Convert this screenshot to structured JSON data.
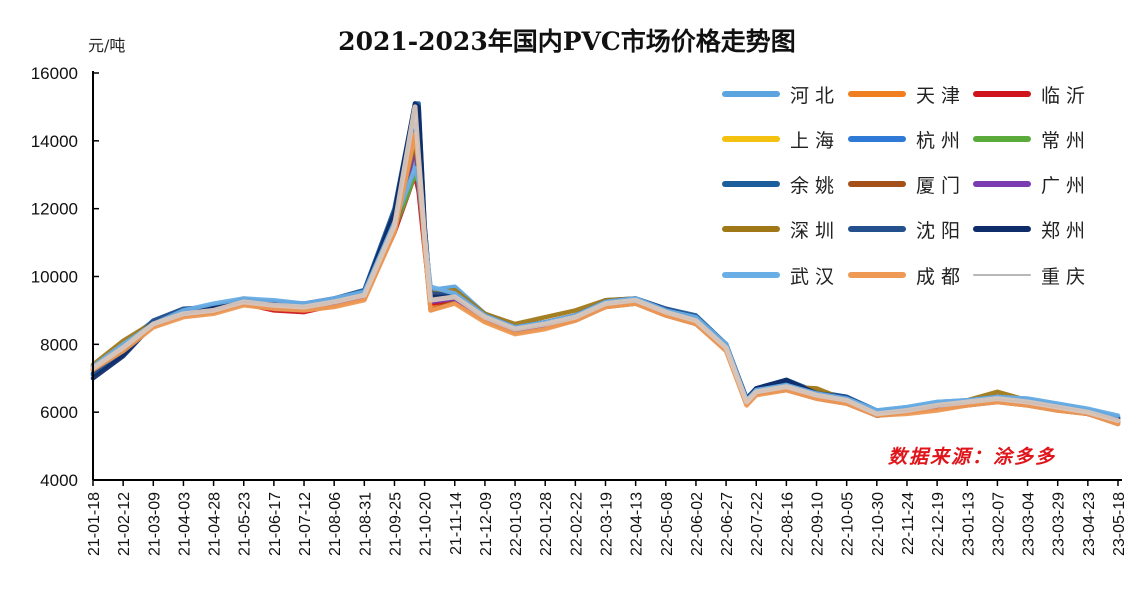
{
  "chart_data": {
    "type": "line",
    "title": "2021-2023年国内PVC市场价格走势图",
    "ylabel": "元/吨",
    "xlabel": "",
    "ylim": [
      4000,
      16000
    ],
    "yticks": [
      4000,
      6000,
      8000,
      10000,
      12000,
      14000,
      16000
    ],
    "xtick_labels": [
      "21-01-18",
      "21-02-12",
      "21-03-09",
      "21-04-03",
      "21-04-28",
      "21-05-23",
      "21-06-17",
      "21-07-12",
      "21-08-06",
      "21-08-31",
      "21-09-25",
      "21-10-20",
      "21-11-14",
      "21-12-09",
      "22-01-03",
      "22-01-28",
      "22-02-22",
      "22-03-19",
      "22-04-13",
      "22-05-08",
      "22-06-02",
      "22-06-27",
      "22-07-22",
      "22-08-16",
      "22-09-10",
      "22-10-05",
      "22-10-30",
      "22-11-24",
      "22-12-19",
      "23-01-13",
      "23-02-07",
      "23-03-04",
      "23-03-29",
      "23-04-23",
      "23-05-18"
    ],
    "grid": false,
    "legend_position": "top-right",
    "source_note": "数据来源：涂多多",
    "x": [
      "21-01-18",
      "21-02-12",
      "21-03-09",
      "21-04-03",
      "21-04-28",
      "21-05-23",
      "21-06-17",
      "21-07-12",
      "21-08-06",
      "21-08-31",
      "21-09-25",
      "21-10-12",
      "21-10-15",
      "21-10-20",
      "21-10-25",
      "21-11-14",
      "21-12-09",
      "22-01-03",
      "22-01-28",
      "22-02-22",
      "22-03-19",
      "22-04-13",
      "22-05-08",
      "22-06-02",
      "22-06-27",
      "22-07-14",
      "22-07-22",
      "22-08-16",
      "22-09-10",
      "22-10-05",
      "22-10-30",
      "22-11-24",
      "22-12-19",
      "23-01-13",
      "23-02-07",
      "23-03-04",
      "23-03-29",
      "23-04-23",
      "23-05-18"
    ],
    "series": [
      {
        "name": "河北",
        "color": "#5ba4e0",
        "values": [
          7350,
          8000,
          8700,
          9000,
          9150,
          9300,
          9250,
          9150,
          9300,
          9550,
          11700,
          13500,
          12800,
          11000,
          9600,
          9700,
          8900,
          8500,
          8650,
          8850,
          9250,
          9300,
          9000,
          8800,
          8000,
          6400,
          6650,
          6800,
          6600,
          6450,
          6050,
          6150,
          6300,
          6350,
          6450,
          6400,
          6250,
          6100,
          5850
        ]
      },
      {
        "name": "天津",
        "color": "#f07f22",
        "values": [
          7250,
          7850,
          8550,
          8850,
          8950,
          9200,
          9100,
          9050,
          9200,
          9400,
          11400,
          14000,
          13200,
          11000,
          9100,
          9300,
          8700,
          8350,
          8500,
          8750,
          9100,
          9250,
          8900,
          8650,
          7850,
          6250,
          6550,
          6700,
          6450,
          6300,
          5900,
          6000,
          6150,
          6250,
          6350,
          6250,
          6100,
          5950,
          5700
        ]
      },
      {
        "name": "临沂",
        "color": "#d0141c",
        "values": [
          7300,
          7900,
          8600,
          8900,
          9000,
          9200,
          9000,
          8950,
          9150,
          9400,
          11300,
          13000,
          12500,
          10800,
          9200,
          9300,
          8750,
          8400,
          8550,
          8750,
          9150,
          9250,
          8900,
          8650,
          7900,
          6300,
          6600,
          6700,
          6450,
          6300,
          5950,
          6050,
          6150,
          6250,
          6350,
          6250,
          6100,
          5950,
          5700
        ]
      },
      {
        "name": "上海",
        "color": "#f5c110",
        "values": [
          7300,
          7950,
          8650,
          8950,
          9050,
          9300,
          9150,
          9100,
          9250,
          9450,
          11500,
          14200,
          13200,
          11100,
          9300,
          9400,
          8800,
          8450,
          8600,
          8800,
          9200,
          9300,
          8950,
          8700,
          7900,
          6300,
          6600,
          6750,
          6500,
          6350,
          5950,
          6050,
          6200,
          6300,
          6400,
          6300,
          6150,
          6000,
          5750
        ]
      },
      {
        "name": "杭州",
        "color": "#2f7ad6",
        "values": [
          7350,
          7950,
          8650,
          8950,
          9100,
          9300,
          9200,
          9150,
          9300,
          9500,
          11600,
          14500,
          13400,
          11200,
          9400,
          9450,
          8850,
          8500,
          8650,
          8850,
          9250,
          9350,
          9000,
          8750,
          7950,
          6350,
          6650,
          6800,
          6550,
          6400,
          6000,
          6100,
          6250,
          6350,
          6450,
          6350,
          6200,
          6050,
          5800
        ]
      },
      {
        "name": "常州",
        "color": "#5aaa3c",
        "values": [
          7300,
          7900,
          8600,
          8900,
          9000,
          9250,
          9150,
          9100,
          9250,
          9450,
          11400,
          13000,
          12800,
          11000,
          9300,
          9400,
          8800,
          8450,
          8600,
          8800,
          9200,
          9300,
          8950,
          8700,
          7900,
          6300,
          6600,
          6750,
          6500,
          6350,
          5950,
          6050,
          6200,
          6300,
          6400,
          6300,
          6150,
          6000,
          5750
        ]
      },
      {
        "name": "余姚",
        "color": "#1d5e9c",
        "values": [
          7100,
          7700,
          8650,
          9000,
          9050,
          9300,
          9200,
          9150,
          9350,
          9600,
          12000,
          15100,
          15100,
          11500,
          9500,
          9500,
          8900,
          8500,
          8650,
          8850,
          9300,
          9350,
          9050,
          8850,
          8000,
          6400,
          6700,
          6950,
          6600,
          6450,
          6050,
          6100,
          6250,
          6350,
          6450,
          6350,
          6200,
          6050,
          5850
        ]
      },
      {
        "name": "厦门",
        "color": "#a3501a",
        "values": [
          7250,
          7850,
          8550,
          8850,
          8950,
          9200,
          9050,
          9000,
          9150,
          9350,
          11300,
          13800,
          13000,
          10900,
          9000,
          9250,
          8700,
          8350,
          8500,
          8700,
          9100,
          9200,
          8850,
          8600,
          7850,
          6250,
          6550,
          6650,
          6400,
          6250,
          5900,
          6000,
          6100,
          6200,
          6300,
          6200,
          6050,
          5950,
          5650
        ]
      },
      {
        "name": "广州",
        "color": "#7a3cb0",
        "values": [
          7250,
          7850,
          8550,
          8850,
          8950,
          9200,
          9100,
          9050,
          9200,
          9400,
          11400,
          13800,
          13000,
          11000,
          9250,
          9350,
          8750,
          8400,
          8550,
          8750,
          9150,
          9250,
          8900,
          8650,
          7850,
          6250,
          6550,
          6700,
          6450,
          6300,
          5900,
          6000,
          6150,
          6250,
          6350,
          6250,
          6100,
          5950,
          5700
        ]
      },
      {
        "name": "深圳",
        "color": "#a07818",
        "values": [
          7400,
          8100,
          8650,
          9000,
          9100,
          9350,
          9200,
          9100,
          9250,
          9500,
          11500,
          14000,
          13200,
          11100,
          9500,
          9600,
          8900,
          8600,
          8800,
          9000,
          9300,
          9350,
          8950,
          8700,
          7900,
          6300,
          6650,
          6750,
          6700,
          6350,
          5950,
          6050,
          6250,
          6350,
          6600,
          6350,
          6200,
          6000,
          5750
        ]
      },
      {
        "name": "沈阳",
        "color": "#24508e",
        "values": [
          7150,
          7750,
          8700,
          9050,
          9100,
          9300,
          9200,
          9150,
          9300,
          9550,
          11800,
          15000,
          14800,
          11400,
          9500,
          9450,
          8850,
          8500,
          8650,
          8850,
          9250,
          9350,
          9050,
          8800,
          8000,
          6400,
          6700,
          6900,
          6550,
          6450,
          6000,
          6100,
          6250,
          6350,
          6450,
          6350,
          6200,
          6050,
          5850
        ]
      },
      {
        "name": "郑州",
        "color": "#0e2c6a",
        "values": [
          7000,
          7650,
          8600,
          8950,
          9100,
          9300,
          9250,
          9200,
          9350,
          9550,
          11900,
          15100,
          15000,
          11500,
          9400,
          9400,
          8850,
          8450,
          8600,
          8800,
          9200,
          9300,
          9000,
          8800,
          8000,
          6350,
          6700,
          6950,
          6550,
          6400,
          5900,
          6050,
          6200,
          6300,
          6400,
          6300,
          6150,
          6000,
          5800
        ]
      },
      {
        "name": "武汉",
        "color": "#6aaee6",
        "values": [
          7350,
          8000,
          8600,
          9000,
          9200,
          9350,
          9300,
          9200,
          9350,
          9550,
          11600,
          13200,
          12800,
          11200,
          9700,
          9500,
          8850,
          8500,
          8650,
          8850,
          9250,
          9350,
          9000,
          8800,
          8000,
          6350,
          6650,
          6800,
          6550,
          6400,
          6050,
          6150,
          6300,
          6350,
          6450,
          6400,
          6250,
          6100,
          5900
        ]
      },
      {
        "name": "成都",
        "color": "#ee9a55",
        "values": [
          7250,
          7800,
          8500,
          8800,
          8900,
          9150,
          9050,
          9000,
          9100,
          9300,
          11300,
          14200,
          13300,
          10900,
          9000,
          9200,
          8650,
          8300,
          8450,
          8700,
          9100,
          9200,
          8850,
          8600,
          7800,
          6200,
          6500,
          6650,
          6400,
          6250,
          5900,
          5950,
          6050,
          6200,
          6300,
          6200,
          6050,
          5950,
          5650
        ]
      },
      {
        "name": "重庆",
        "color": "#d8c6bc",
        "values": [
          7300,
          7900,
          8600,
          8900,
          9000,
          9250,
          9150,
          9100,
          9250,
          9450,
          11500,
          15000,
          13500,
          11200,
          9300,
          9400,
          8800,
          8450,
          8600,
          8800,
          9200,
          9300,
          8950,
          8700,
          7900,
          6300,
          6600,
          6750,
          6500,
          6350,
          5950,
          6050,
          6200,
          6300,
          6400,
          6300,
          6150,
          6000,
          5750
        ]
      }
    ]
  }
}
